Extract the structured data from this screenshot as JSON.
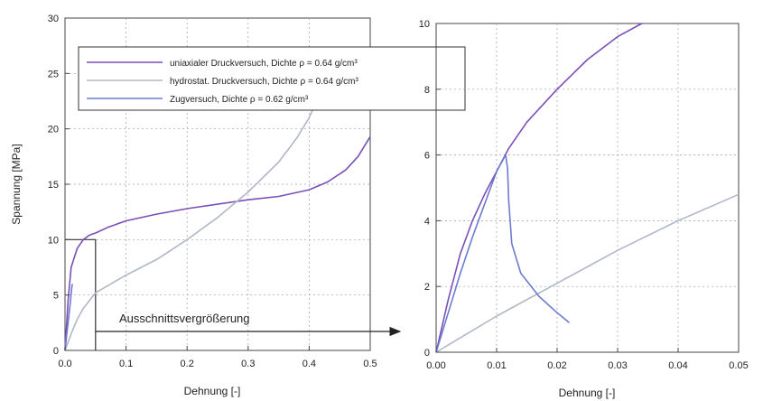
{
  "chart_data": [
    {
      "type": "line",
      "panel": "left",
      "xlabel": "Dehnung [-]",
      "ylabel": "Spannung [MPa]",
      "xlim": [
        0.0,
        0.5
      ],
      "ylim": [
        0,
        30
      ],
      "x_ticks": [
        "0.0",
        "0.1",
        "0.2",
        "0.3",
        "0.4",
        "0.5"
      ],
      "y_ticks": [
        "0",
        "5",
        "10",
        "15",
        "20",
        "25",
        "30"
      ],
      "grid": true,
      "legend_position": "top",
      "legend": [
        "uniaxialer Druckversuch, Dichte ρ = 0.64 g/cm³",
        "hydrostat. Druckversuch, Dichte ρ = 0.64 g/cm³",
        "Zugversuch, Dichte ρ = 0.62 g/cm³"
      ],
      "series": [
        {
          "color": "#7a4fb8",
          "x": [
            0,
            0.005,
            0.01,
            0.02,
            0.03,
            0.04,
            0.05,
            0.07,
            0.1,
            0.15,
            0.2,
            0.25,
            0.3,
            0.35,
            0.4,
            0.43,
            0.46,
            0.48,
            0.5
          ],
          "y": [
            0,
            4.5,
            7.5,
            9.2,
            10.0,
            10.4,
            10.6,
            11.1,
            11.7,
            12.3,
            12.8,
            13.2,
            13.6,
            13.9,
            14.5,
            15.2,
            16.3,
            17.5,
            19.3
          ]
        },
        {
          "color": "#b0b7c6",
          "x": [
            0,
            0.01,
            0.02,
            0.03,
            0.05,
            0.1,
            0.15,
            0.2,
            0.25,
            0.3,
            0.35,
            0.38,
            0.4,
            0.42
          ],
          "y": [
            0,
            1.5,
            2.8,
            3.8,
            5.2,
            6.8,
            8.2,
            10.0,
            12.0,
            14.3,
            17.0,
            19.2,
            21.0,
            23.5
          ]
        },
        {
          "color": "#6c7bd0",
          "x": [
            0,
            0.003,
            0.006,
            0.009,
            0.011,
            0.012
          ],
          "y": [
            0,
            1.5,
            3.0,
            4.5,
            5.6,
            6.0
          ]
        }
      ],
      "annotation": "Ausschnittsvergrößerung",
      "zoom_box": {
        "x": [
          0,
          0.05
        ],
        "y": [
          0,
          10
        ]
      }
    },
    {
      "type": "line",
      "panel": "right",
      "xlabel": "Dehnung [-]",
      "ylabel": "",
      "xlim": [
        0.0,
        0.05
      ],
      "ylim": [
        0,
        10
      ],
      "x_ticks": [
        "0.00",
        "0.01",
        "0.02",
        "0.03",
        "0.04",
        "0.05"
      ],
      "y_ticks": [
        "0",
        "2",
        "4",
        "6",
        "8",
        "10"
      ],
      "grid": true,
      "series": [
        {
          "color": "#7a4fb8",
          "x": [
            0,
            0.002,
            0.004,
            0.006,
            0.008,
            0.01,
            0.012,
            0.015,
            0.02,
            0.025,
            0.03,
            0.034
          ],
          "y": [
            0,
            1.6,
            3.0,
            4.0,
            4.8,
            5.5,
            6.2,
            7.0,
            8.0,
            8.9,
            9.6,
            10.0
          ]
        },
        {
          "color": "#b0b7c6",
          "x": [
            0,
            0.01,
            0.02,
            0.03,
            0.04,
            0.05
          ],
          "y": [
            0,
            1.1,
            2.1,
            3.1,
            4.0,
            4.8
          ]
        },
        {
          "color": "#6c7bd0",
          "x": [
            0,
            0.002,
            0.004,
            0.006,
            0.008,
            0.01,
            0.0115,
            0.0118,
            0.012,
            0.0125,
            0.014,
            0.017,
            0.02,
            0.022
          ],
          "y": [
            0,
            1.2,
            2.4,
            3.5,
            4.5,
            5.5,
            6.0,
            5.6,
            4.6,
            3.3,
            2.4,
            1.7,
            1.2,
            0.9
          ]
        }
      ]
    }
  ]
}
